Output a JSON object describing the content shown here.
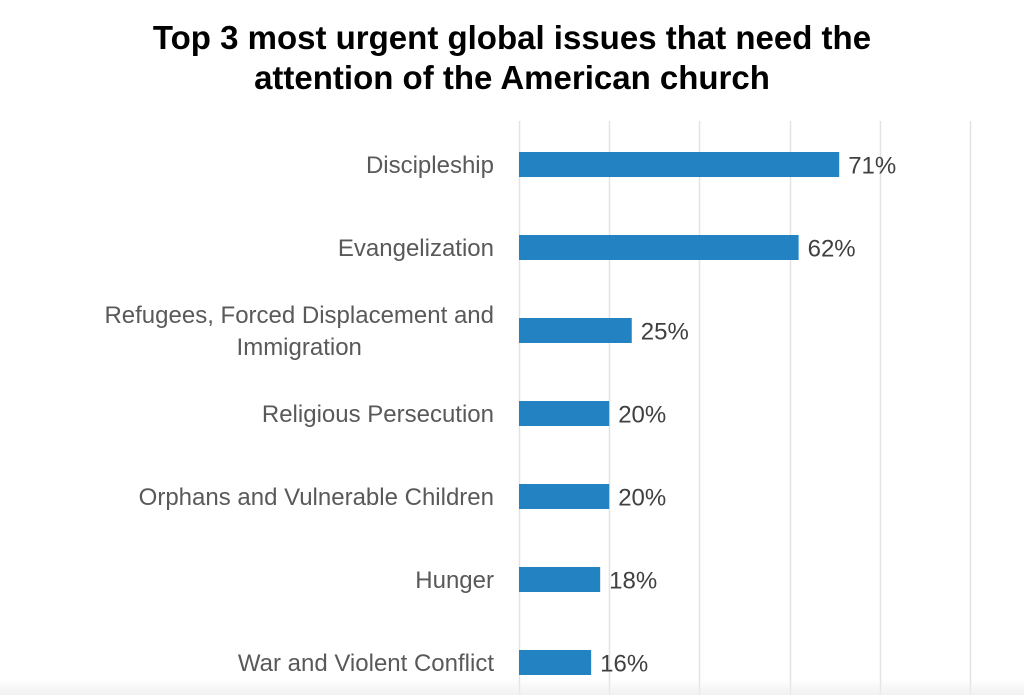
{
  "chart_data": {
    "type": "bar",
    "orientation": "horizontal",
    "title": "Top 3 most urgent global issues that need the attention of the American church",
    "title_lines": [
      "Top 3 most urgent global issues that need the",
      "attention of the American church"
    ],
    "categories": [
      [
        "Discipleship"
      ],
      [
        "Evangelization"
      ],
      [
        "Refugees, Forced Displacement and",
        "Immigration"
      ],
      [
        "Religious Persecution"
      ],
      [
        "Orphans and Vulnerable Children"
      ],
      [
        "Hunger"
      ],
      [
        "War and Violent Conflict"
      ]
    ],
    "category_names": [
      "Discipleship",
      "Evangelization",
      "Refugees, Forced Displacement and Immigration",
      "Religious Persecution",
      "Orphans and Vulnerable Children",
      "Hunger",
      "War and Violent Conflict"
    ],
    "values": [
      71,
      62,
      25,
      20,
      20,
      18,
      16
    ],
    "data_labels": [
      "71%",
      "62%",
      "25%",
      "20%",
      "20%",
      "18%",
      "16%"
    ],
    "xlabel": "",
    "ylabel": "",
    "xlim": [
      0,
      100
    ],
    "gridlines_at": [
      0,
      20,
      40,
      60,
      80,
      100
    ],
    "grid": true,
    "x_tick_labels_shown": false,
    "legend": "none",
    "colors": {
      "bar": "#2383c2",
      "gridline": "#e3e3e3",
      "label_text": "#595959",
      "value_text": "#404040",
      "title_text": "#000000"
    }
  }
}
